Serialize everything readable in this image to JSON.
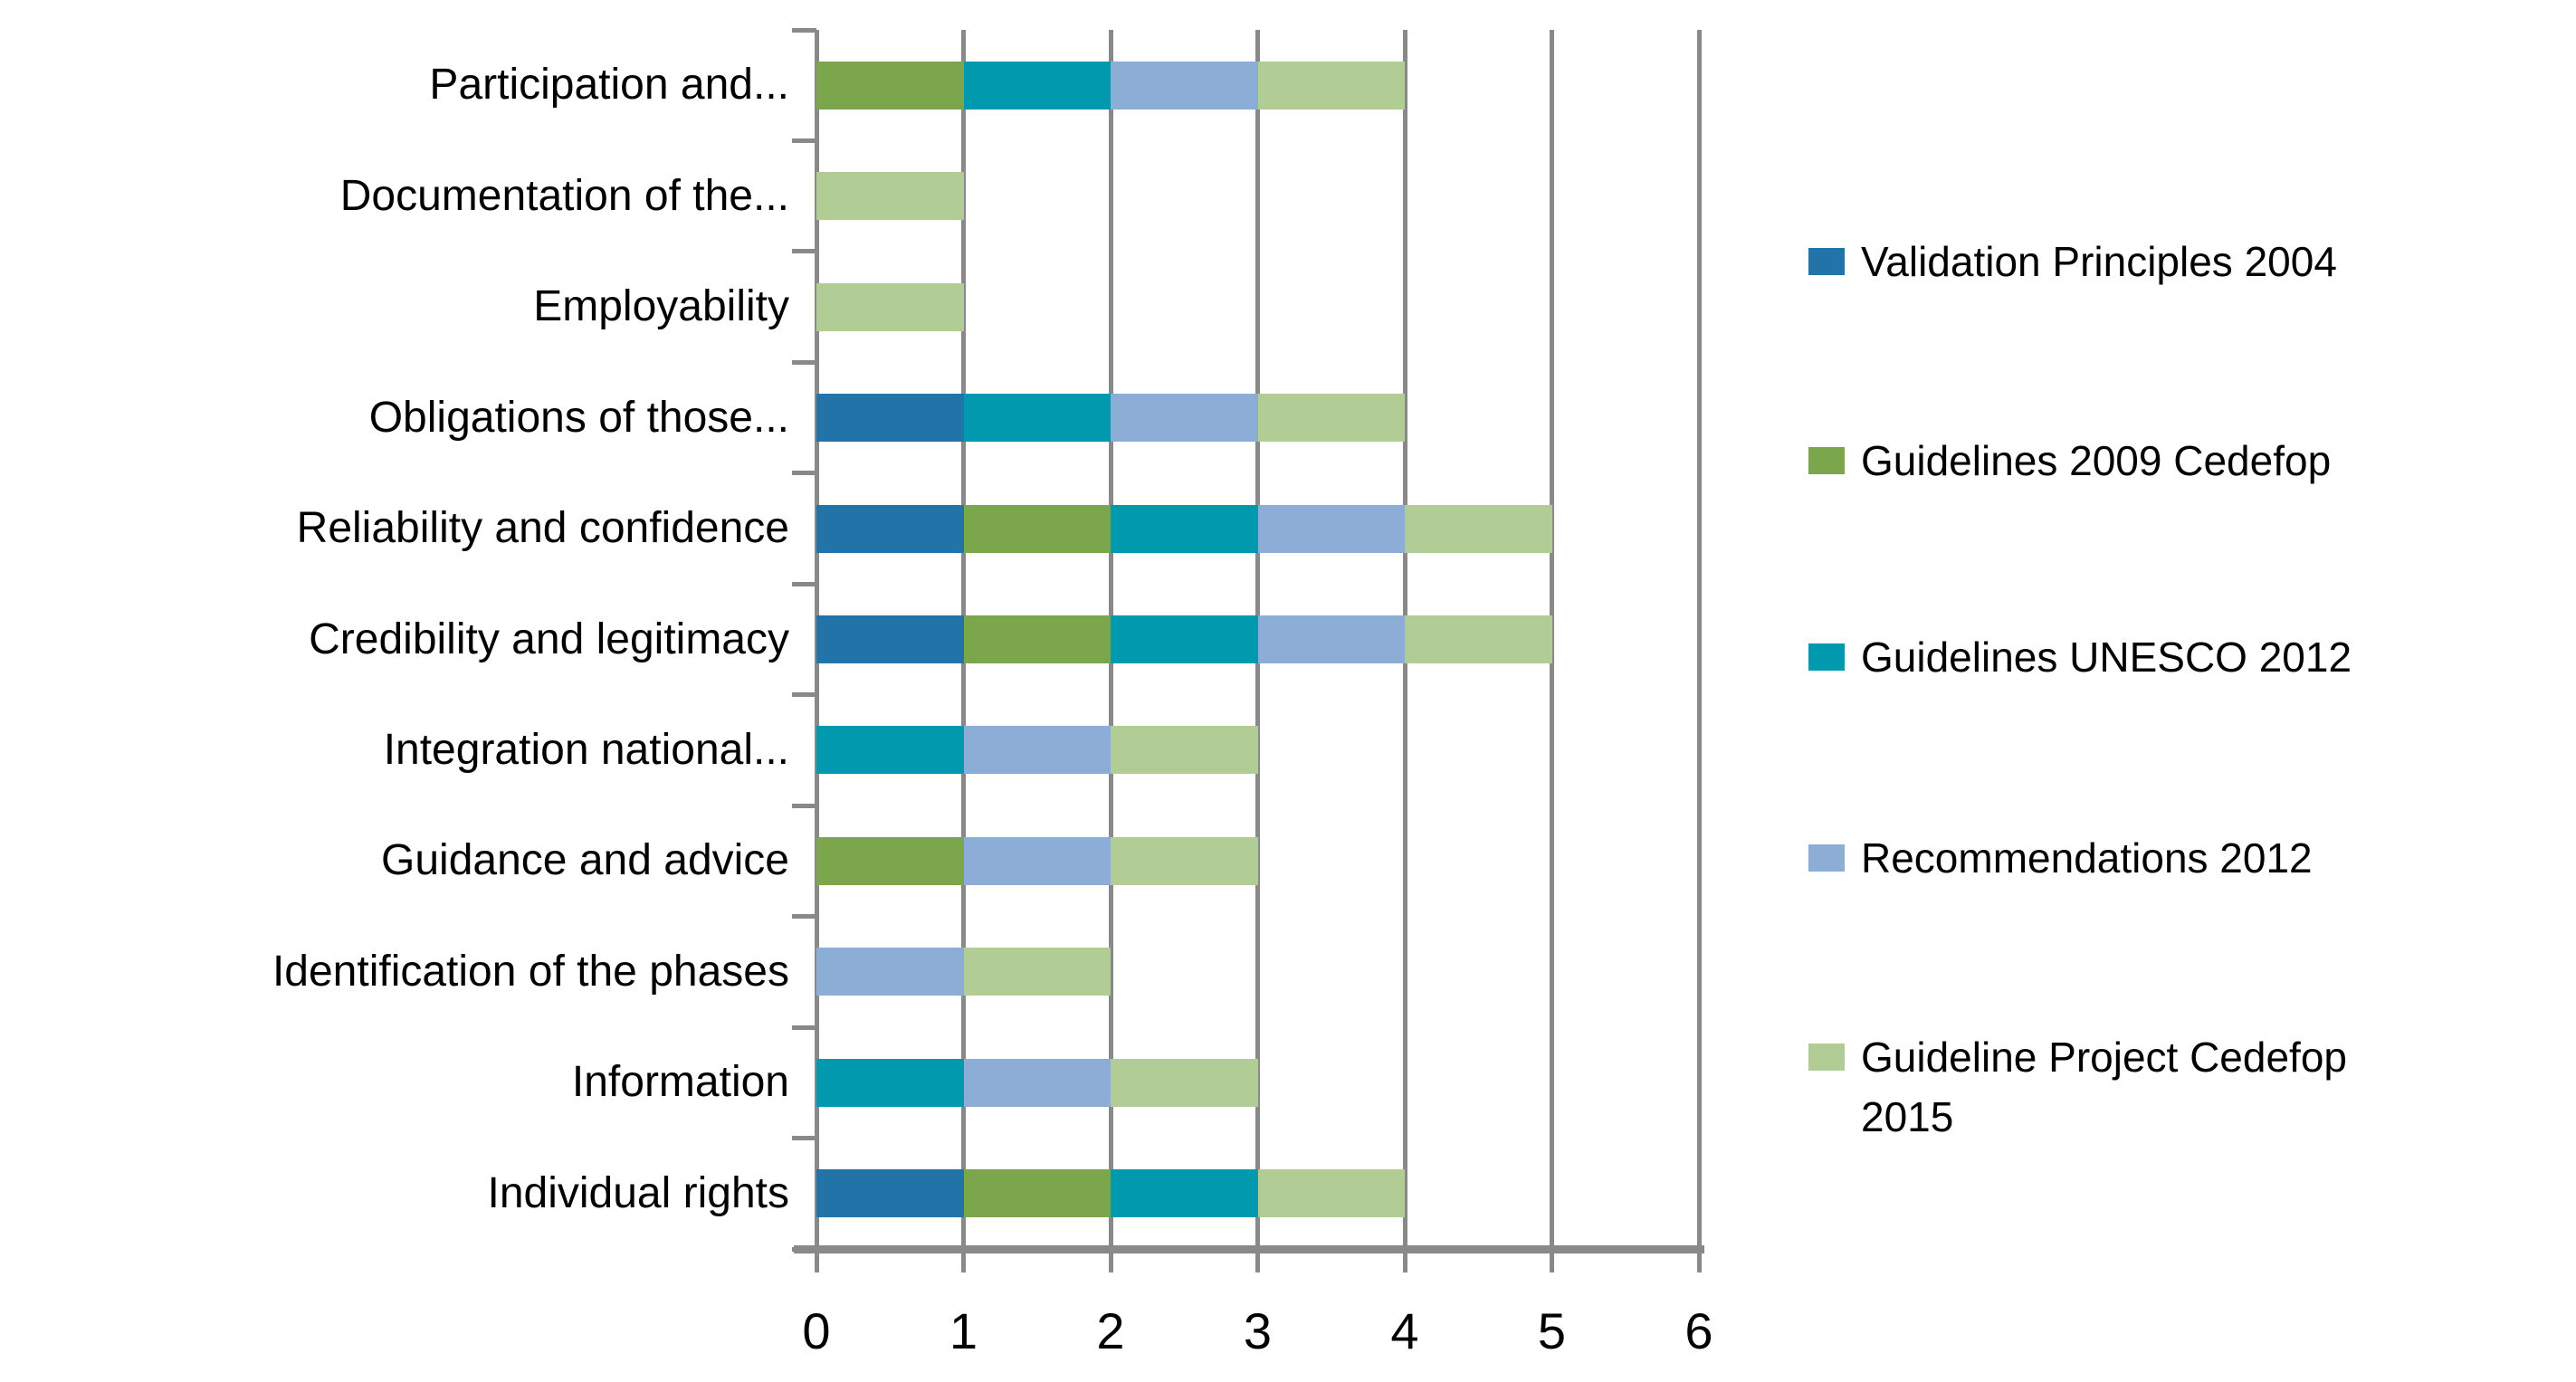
{
  "chart_data": {
    "type": "bar",
    "orientation": "horizontal-stacked",
    "title": "",
    "xlabel": "",
    "ylabel": "",
    "xlim": [
      0,
      6
    ],
    "x_tick_labels": [
      "0",
      "1",
      "2",
      "3",
      "4",
      "5",
      "6"
    ],
    "grid": true,
    "grid_color": "#898989",
    "axis_color": "#898989",
    "text_color": "#000000",
    "background_color": "#ffffff",
    "legend_position": "right",
    "categories": [
      "Participation and...",
      "Documentation of the...",
      "Employability",
      "Obligations of those...",
      "Reliability and confidence",
      "Credibility and legitimacy",
      "Integration national...",
      "Guidance and advice",
      "Identification of the phases",
      "Information",
      "Individual rights"
    ],
    "series": [
      {
        "name": "Validation Principles 2004",
        "color": "#2173A8",
        "values": [
          0,
          0,
          0,
          1,
          1,
          1,
          0,
          0,
          0,
          0,
          1
        ]
      },
      {
        "name": "Guidelines 2009 Cedefop",
        "color": "#7BA64B",
        "values": [
          1,
          0,
          0,
          0,
          1,
          1,
          0,
          1,
          0,
          0,
          1
        ]
      },
      {
        "name": "Guidelines UNESCO 2012",
        "color": "#0099AD",
        "values": [
          1,
          0,
          0,
          1,
          1,
          1,
          1,
          0,
          0,
          1,
          1
        ]
      },
      {
        "name": "Recommendations 2012",
        "color": "#8CADD5",
        "values": [
          1,
          0,
          0,
          1,
          1,
          1,
          1,
          1,
          1,
          1,
          0
        ]
      },
      {
        "name": "Guideline Project Cedefop 2015",
        "color": "#B1CD95",
        "values": [
          1,
          1,
          1,
          1,
          1,
          1,
          1,
          1,
          1,
          1,
          1
        ]
      }
    ],
    "stack_totals": [
      4,
      1,
      1,
      4,
      5,
      5,
      3,
      3,
      2,
      3,
      4
    ]
  }
}
